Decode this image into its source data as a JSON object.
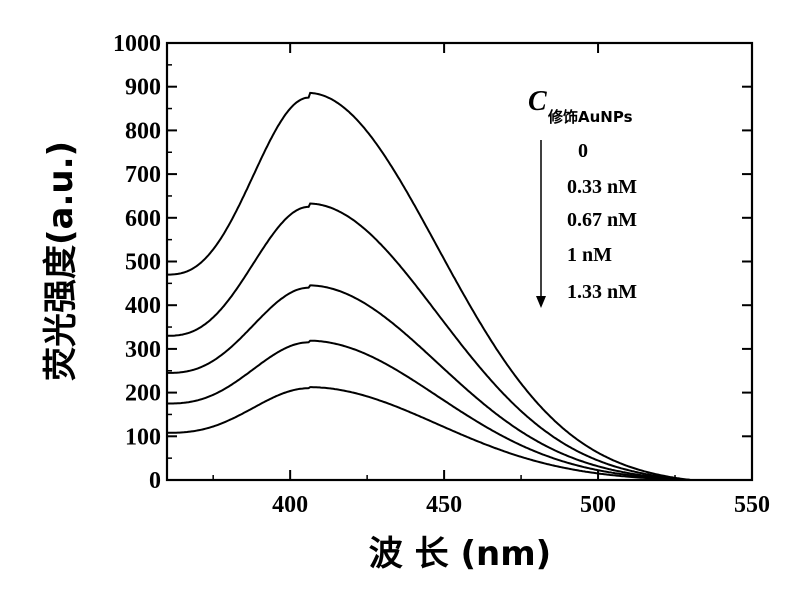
{
  "chart_data": {
    "type": "line",
    "title": "",
    "xlabel": "波 长 (nm)",
    "ylabel": "荧光强度(a.u.)",
    "xlim": [
      360,
      550
    ],
    "ylim": [
      0,
      1000
    ],
    "x_ticks": [
      400,
      450,
      500,
      550
    ],
    "y_ticks": [
      0,
      100,
      200,
      300,
      400,
      500,
      600,
      700,
      800,
      900,
      1000
    ],
    "legend": {
      "title_main": "C",
      "title_sub": "修饰AuNPs",
      "entries": [
        "0",
        "0.33 nM",
        "0.67 nM",
        "1      nM",
        "1.33 nM"
      ],
      "arrow": "down",
      "placement": "top-right"
    },
    "series": [
      {
        "name": "0",
        "start": 470,
        "peak_x": 406,
        "peak": 875,
        "end_x": 530
      },
      {
        "name": "0.33 nM",
        "start": 330,
        "peak_x": 406,
        "peak": 625,
        "end_x": 530
      },
      {
        "name": "0.67 nM",
        "start": 245,
        "peak_x": 406,
        "peak": 440,
        "end_x": 530
      },
      {
        "name": "1 nM",
        "start": 175,
        "peak_x": 406,
        "peak": 315,
        "end_x": 530
      },
      {
        "name": "1.33 nM",
        "start": 108,
        "peak_x": 406,
        "peak": 210,
        "end_x": 530
      }
    ]
  }
}
